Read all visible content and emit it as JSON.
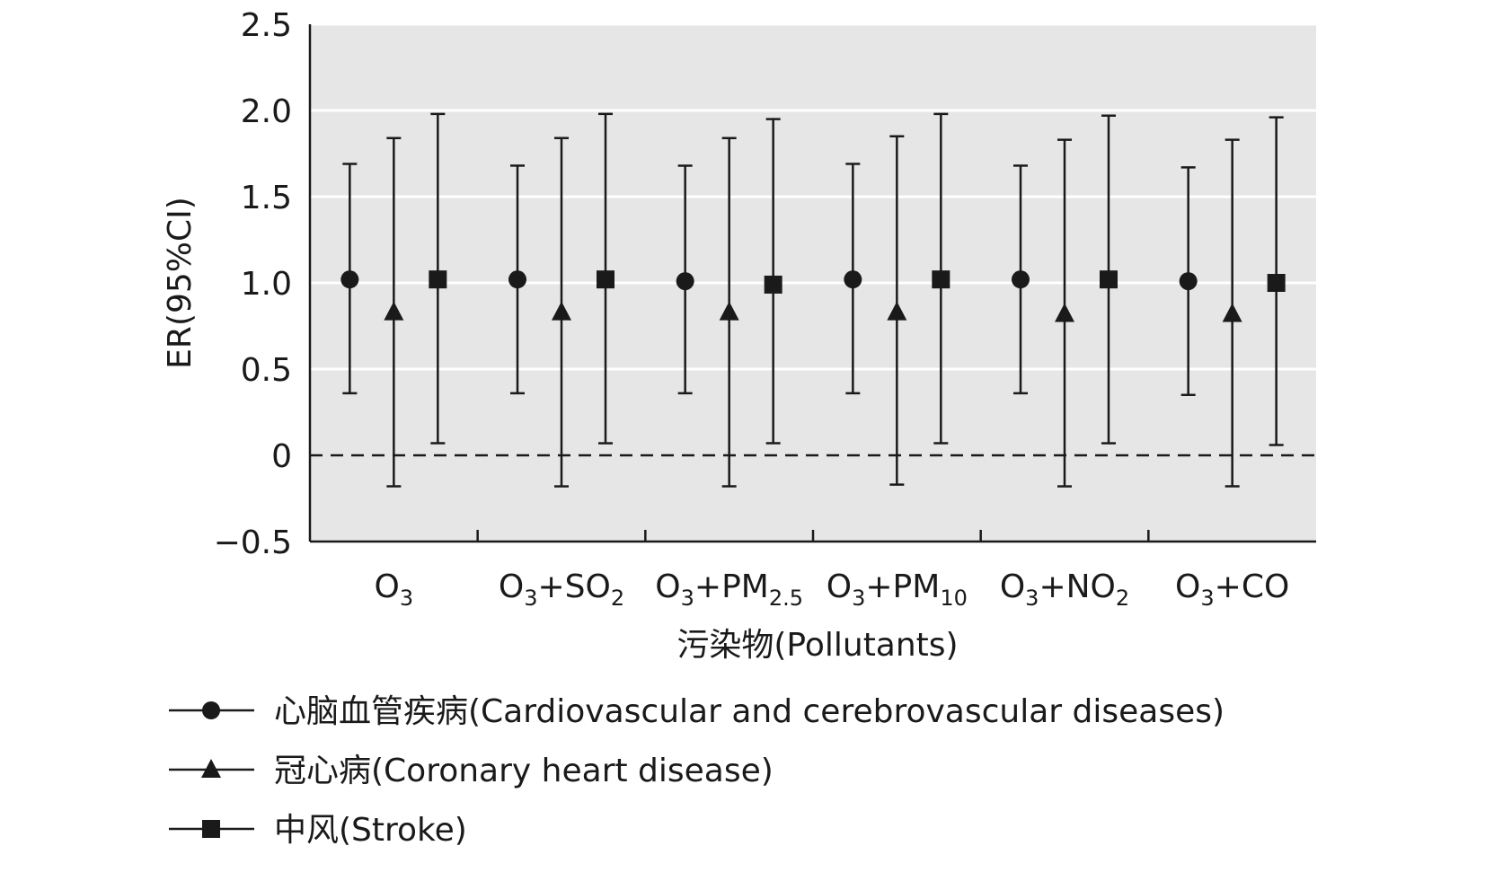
{
  "chart_data": {
    "type": "scatter",
    "subtype": "error-bar",
    "categories": [
      {
        "base": "O",
        "sub1": "3",
        "plus": "",
        "rest": "",
        "sub2": ""
      },
      {
        "base": "O",
        "sub1": "3",
        "plus": "+",
        "rest": "SO",
        "sub2": "2"
      },
      {
        "base": "O",
        "sub1": "3",
        "plus": "+",
        "rest": "PM",
        "sub2": "2.5"
      },
      {
        "base": "O",
        "sub1": "3",
        "plus": "+",
        "rest": "PM",
        "sub2": "10"
      },
      {
        "base": "O",
        "sub1": "3",
        "plus": "+",
        "rest": "NO",
        "sub2": "2"
      },
      {
        "base": "O",
        "sub1": "3",
        "plus": "+",
        "rest": "CO",
        "sub2": ""
      }
    ],
    "series": [
      {
        "name": "心脑血管疾病(Cardiovascular and cerebrovascular diseases)",
        "marker": "circle",
        "values": [
          1.02,
          1.02,
          1.01,
          1.02,
          1.02,
          1.01
        ],
        "lower": [
          0.36,
          0.36,
          0.36,
          0.36,
          0.36,
          0.35
        ],
        "upper": [
          1.69,
          1.68,
          1.68,
          1.69,
          1.68,
          1.67
        ]
      },
      {
        "name": "冠心病(Coronary heart disease)",
        "marker": "triangle",
        "values": [
          0.83,
          0.83,
          0.83,
          0.83,
          0.82,
          0.82
        ],
        "lower": [
          -0.18,
          -0.18,
          -0.18,
          -0.17,
          -0.18,
          -0.18
        ],
        "upper": [
          1.84,
          1.84,
          1.84,
          1.85,
          1.83,
          1.83
        ]
      },
      {
        "name": "中风(Stroke)",
        "marker": "square",
        "values": [
          1.02,
          1.02,
          0.99,
          1.02,
          1.02,
          1.0
        ],
        "lower": [
          0.07,
          0.07,
          0.07,
          0.07,
          0.07,
          0.06
        ],
        "upper": [
          1.98,
          1.98,
          1.95,
          1.98,
          1.97,
          1.96
        ]
      }
    ],
    "ylabel": "ER(95%CI)",
    "xlabel": "污染物(Pollutants)",
    "ylim": [
      -0.5,
      2.5
    ],
    "yticks": [
      {
        "value": -0.5,
        "label": "−0.5"
      },
      {
        "value": 0,
        "label": "0"
      },
      {
        "value": 0.5,
        "label": "0.5"
      },
      {
        "value": 1.0,
        "label": "1.0"
      },
      {
        "value": 1.5,
        "label": "1.5"
      },
      {
        "value": 2.0,
        "label": "2.0"
      },
      {
        "value": 2.5,
        "label": "2.5"
      }
    ],
    "reference_line": 0,
    "grid": "horizontal",
    "legend_position": "bottom-left",
    "colors": {
      "plot_bg": "#e6e6e6",
      "grid": "#ffffff",
      "ink": "#1a1a1a"
    }
  }
}
